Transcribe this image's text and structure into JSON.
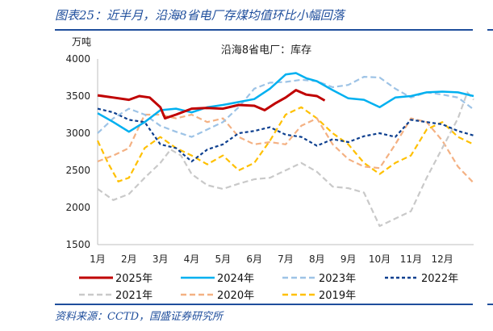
{
  "figure_title": "图表25：近半月，沿海8省电厂存煤均值环比小幅回落",
  "source": "资料来源：CCTD，国盛证券研究所",
  "chart_data": {
    "type": "line",
    "title": "沿海8省电厂：库存",
    "ylabel": "万吨",
    "xlabel": "",
    "ylim": [
      1500,
      4000
    ],
    "yticks": [
      1500,
      2000,
      2500,
      3000,
      3500,
      4000
    ],
    "xticks": [
      "1月",
      "2月",
      "3月",
      "4月",
      "5月",
      "6月",
      "7月",
      "8月",
      "9月",
      "10月",
      "11月",
      "12月"
    ],
    "grid": false,
    "legend_position": "bottom",
    "x_note_unit": "month",
    "series": [
      {
        "name": "2025年",
        "color": "#c00000",
        "style": "solid",
        "x": [
          1,
          1.5,
          2,
          2.33,
          2.66,
          3,
          3.15,
          3.5,
          4,
          4.5,
          5,
          5.5,
          6,
          6.33,
          6.66,
          7,
          7.33,
          7.66,
          8,
          8.25
        ],
        "y": [
          3510,
          3480,
          3450,
          3500,
          3480,
          3350,
          3200,
          3250,
          3330,
          3340,
          3330,
          3380,
          3370,
          3310,
          3400,
          3480,
          3580,
          3520,
          3500,
          3440
        ]
      },
      {
        "name": "2024年",
        "color": "#00b0f0",
        "style": "solid",
        "x": [
          1,
          1.5,
          2,
          2.5,
          3,
          3.5,
          4,
          4.5,
          5,
          5.5,
          6,
          6.5,
          7,
          7.33,
          7.66,
          8,
          8.5,
          9,
          9.5,
          10,
          10.5,
          11,
          11.5,
          12,
          12.5,
          13
        ],
        "y": [
          3270,
          3150,
          3020,
          3150,
          3310,
          3330,
          3280,
          3350,
          3380,
          3420,
          3460,
          3600,
          3790,
          3810,
          3740,
          3700,
          3580,
          3470,
          3450,
          3350,
          3480,
          3500,
          3550,
          3560,
          3550,
          3500
        ]
      },
      {
        "name": "2023年",
        "color": "#9dc3e6",
        "style": "dash",
        "x": [
          1,
          1.5,
          2,
          2.5,
          3,
          3.5,
          4,
          4.5,
          5,
          5.5,
          6,
          6.5,
          7,
          7.5,
          8,
          8.5,
          9,
          9.5,
          10,
          10.5,
          11,
          11.5,
          12,
          12.5,
          13
        ],
        "y": [
          3000,
          3200,
          3330,
          3250,
          3100,
          3020,
          2950,
          3050,
          3150,
          3350,
          3600,
          3680,
          3690,
          3720,
          3700,
          3620,
          3650,
          3760,
          3750,
          3600,
          3480,
          3550,
          3520,
          3480,
          3320
        ]
      },
      {
        "name": "2022年",
        "color": "#0d3f8f",
        "style": "dash",
        "x": [
          1,
          1.5,
          2,
          2.5,
          3,
          3.5,
          4,
          4.5,
          5,
          5.5,
          6,
          6.5,
          7,
          7.5,
          8,
          8.5,
          9,
          9.5,
          10,
          10.5,
          11,
          11.5,
          12,
          12.5,
          13
        ],
        "y": [
          3330,
          3280,
          3180,
          3150,
          2850,
          2800,
          2620,
          2780,
          2850,
          3000,
          3030,
          3080,
          2980,
          2950,
          2830,
          2920,
          2880,
          2960,
          3000,
          2950,
          3180,
          3150,
          3120,
          3030,
          2970
        ]
      },
      {
        "name": "2021年",
        "color": "#c9c9c9",
        "style": "dash",
        "x": [
          1,
          1.5,
          2,
          2.5,
          3,
          3.33,
          3.66,
          4,
          4.5,
          5,
          5.5,
          6,
          6.5,
          7,
          7.5,
          8,
          8.5,
          9,
          9.5,
          10,
          10.5,
          11,
          11.5,
          12,
          12.5,
          12.8,
          13
        ],
        "y": [
          2250,
          2100,
          2180,
          2400,
          2600,
          2780,
          2700,
          2450,
          2300,
          2250,
          2320,
          2380,
          2400,
          2500,
          2600,
          2480,
          2280,
          2260,
          2200,
          1750,
          1850,
          1950,
          2400,
          2800,
          3200,
          3550,
          3450
        ]
      },
      {
        "name": "2020年",
        "color": "#f4b183",
        "style": "dash",
        "x": [
          1,
          1.5,
          2,
          2.5,
          3,
          3.5,
          4,
          4.5,
          5,
          5.5,
          6,
          6.5,
          7,
          7.5,
          8,
          8.5,
          9,
          9.5,
          10,
          10.5,
          11,
          11.5,
          12,
          12.5,
          13
        ],
        "y": [
          2620,
          2700,
          2800,
          3250,
          3250,
          3200,
          3250,
          3150,
          3200,
          2950,
          2850,
          2880,
          2850,
          3100,
          3200,
          2850,
          2650,
          2550,
          2530,
          2850,
          3200,
          3150,
          2900,
          2550,
          2330
        ]
      },
      {
        "name": "2019年",
        "color": "#ffc000",
        "style": "dash",
        "x": [
          1,
          1.33,
          1.66,
          2,
          2.5,
          3,
          3.5,
          4,
          4.5,
          5,
          5.5,
          6,
          6.5,
          7,
          7.5,
          8,
          8.5,
          9,
          9.5,
          10,
          10.5,
          11,
          11.5,
          12,
          12.5,
          13
        ],
        "y": [
          2900,
          2600,
          2350,
          2400,
          2800,
          2950,
          2800,
          2700,
          2580,
          2700,
          2500,
          2600,
          2900,
          3250,
          3350,
          3200,
          3000,
          2850,
          2600,
          2450,
          2600,
          2700,
          3050,
          3150,
          2950,
          2850
        ]
      }
    ]
  }
}
